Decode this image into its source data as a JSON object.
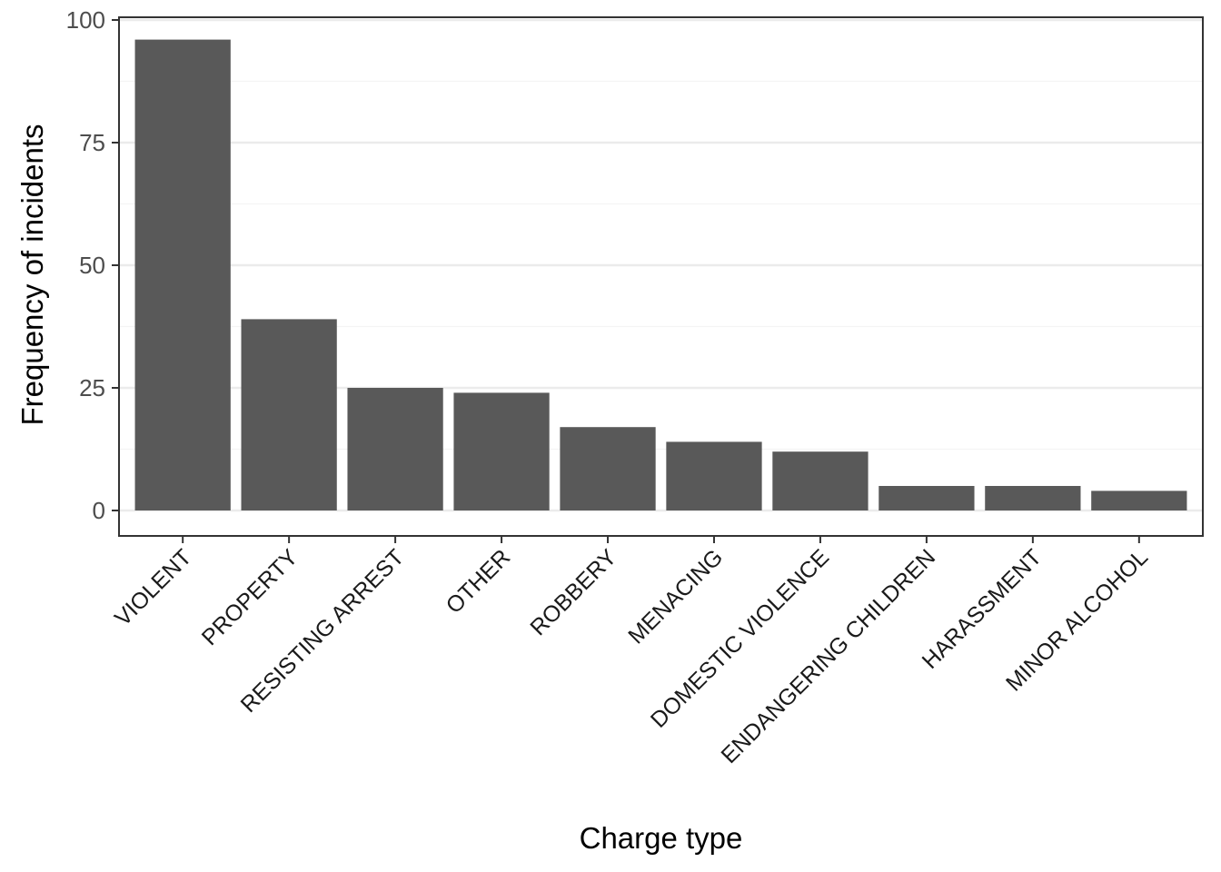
{
  "chart_data": {
    "type": "bar",
    "title": "",
    "xlabel": "Charge type",
    "ylabel": "Frequency of incidents",
    "categories": [
      "VIOLENT",
      "PROPERTY",
      "RESISTING ARREST",
      "OTHER",
      "ROBBERY",
      "MENACING",
      "DOMESTIC VIOLENCE",
      "ENDANGERING CHILDREN",
      "HARASSMENT",
      "MINOR ALCOHOL"
    ],
    "values": [
      96,
      39,
      25,
      24,
      17,
      14,
      12,
      5,
      5,
      4
    ],
    "ylim": [
      0,
      100
    ],
    "yticks": [
      0,
      25,
      50,
      75,
      100
    ],
    "grid": true,
    "legend": "none",
    "bar_color": "#595959",
    "panel_border_color": "#333333",
    "grid_color": "#ebebeb"
  }
}
